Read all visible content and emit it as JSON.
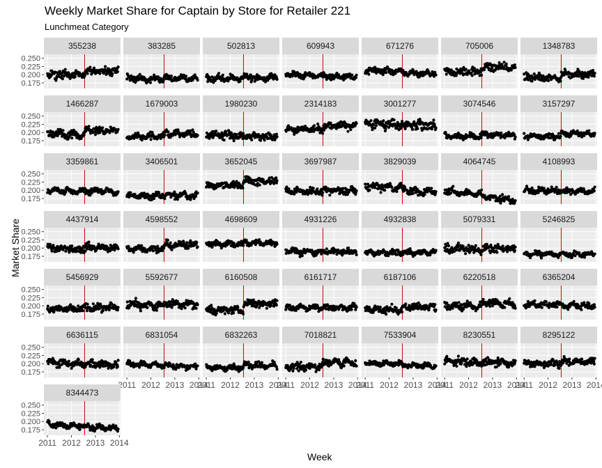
{
  "chart_data": {
    "type": "scatter",
    "title": "Weekly Market Share for Captain by Store for Retailer 221",
    "subtitle": "Lunchmeat Category",
    "xlabel": "Week",
    "ylabel": "Market Share",
    "x_ticks": [
      "2011",
      "2012",
      "2013",
      "2014"
    ],
    "y_ticks": [
      "0.175",
      "0.200",
      "0.225",
      "0.250"
    ],
    "xlim": [
      2010.85,
      2014.05
    ],
    "ylim": [
      0.158,
      0.262
    ],
    "grid": true,
    "facet_columns": 7,
    "reference_line": {
      "x": 2012.55,
      "color": "#cc0000"
    },
    "point_color": "#000000",
    "panel_background": "#ebebeb",
    "strip_background": "#d9d9d9",
    "points_per_panel": 160,
    "panels": [
      {
        "store": "355238",
        "before": 0.2,
        "after": 0.21,
        "trend": 0.0,
        "noise": 0.008
      },
      {
        "store": "383285",
        "before": 0.188,
        "after": 0.192,
        "trend": -0.004,
        "noise": 0.006
      },
      {
        "store": "502813",
        "before": 0.19,
        "after": 0.196,
        "trend": -0.006,
        "noise": 0.007
      },
      {
        "store": "609943",
        "before": 0.2,
        "after": 0.198,
        "trend": -0.005,
        "noise": 0.006
      },
      {
        "store": "671276",
        "before": 0.214,
        "after": 0.21,
        "trend": -0.008,
        "noise": 0.006
      },
      {
        "store": "705006",
        "before": 0.208,
        "after": 0.222,
        "trend": 0.0,
        "noise": 0.009
      },
      {
        "store": "1348783",
        "before": 0.192,
        "after": 0.205,
        "trend": -0.004,
        "noise": 0.008
      },
      {
        "store": "1466287",
        "before": 0.195,
        "after": 0.208,
        "trend": -0.004,
        "noise": 0.008
      },
      {
        "store": "1679003",
        "before": 0.188,
        "after": 0.2,
        "trend": -0.004,
        "noise": 0.007
      },
      {
        "store": "1980230",
        "before": 0.193,
        "after": 0.192,
        "trend": -0.006,
        "noise": 0.008
      },
      {
        "store": "2314183",
        "before": 0.208,
        "after": 0.218,
        "trend": 0.004,
        "noise": 0.008
      },
      {
        "store": "3001277",
        "before": 0.228,
        "after": 0.228,
        "trend": -0.008,
        "noise": 0.01
      },
      {
        "store": "3074546",
        "before": 0.19,
        "after": 0.195,
        "trend": -0.004,
        "noise": 0.006
      },
      {
        "store": "3157297",
        "before": 0.19,
        "after": 0.198,
        "trend": -0.004,
        "noise": 0.006
      },
      {
        "store": "3359861",
        "before": 0.198,
        "after": 0.2,
        "trend": -0.004,
        "noise": 0.006
      },
      {
        "store": "3406501",
        "before": 0.185,
        "after": 0.188,
        "trend": -0.004,
        "noise": 0.007
      },
      {
        "store": "3652045",
        "before": 0.215,
        "after": 0.228,
        "trend": -0.002,
        "noise": 0.008
      },
      {
        "store": "3697987",
        "before": 0.198,
        "after": 0.202,
        "trend": -0.004,
        "noise": 0.007
      },
      {
        "store": "3829039",
        "before": 0.212,
        "after": 0.205,
        "trend": -0.01,
        "noise": 0.008
      },
      {
        "store": "4064745",
        "before": 0.198,
        "after": 0.19,
        "trend": -0.02,
        "noise": 0.007
      },
      {
        "store": "4108993",
        "before": 0.2,
        "after": 0.2,
        "trend": -0.004,
        "noise": 0.006
      },
      {
        "store": "4437914",
        "before": 0.2,
        "after": 0.208,
        "trend": -0.008,
        "noise": 0.008
      },
      {
        "store": "4598552",
        "before": 0.198,
        "after": 0.21,
        "trend": 0.0,
        "noise": 0.007
      },
      {
        "store": "4698609",
        "before": 0.214,
        "after": 0.218,
        "trend": -0.004,
        "noise": 0.006
      },
      {
        "store": "4931226",
        "before": 0.19,
        "after": 0.192,
        "trend": -0.004,
        "noise": 0.006
      },
      {
        "store": "4932838",
        "before": 0.186,
        "after": 0.188,
        "trend": -0.002,
        "noise": 0.006
      },
      {
        "store": "5079331",
        "before": 0.198,
        "after": 0.2,
        "trend": -0.004,
        "noise": 0.009
      },
      {
        "store": "5246825",
        "before": 0.182,
        "after": 0.182,
        "trend": -0.002,
        "noise": 0.005
      },
      {
        "store": "5456929",
        "before": 0.19,
        "after": 0.195,
        "trend": 0.0,
        "noise": 0.008
      },
      {
        "store": "5592677",
        "before": 0.205,
        "after": 0.212,
        "trend": -0.008,
        "noise": 0.008
      },
      {
        "store": "6160508",
        "before": 0.188,
        "after": 0.208,
        "trend": -0.002,
        "noise": 0.008
      },
      {
        "store": "6161717",
        "before": 0.195,
        "after": 0.196,
        "trend": -0.002,
        "noise": 0.006
      },
      {
        "store": "6187106",
        "before": 0.188,
        "after": 0.198,
        "trend": -0.002,
        "noise": 0.007
      },
      {
        "store": "6220518",
        "before": 0.2,
        "after": 0.212,
        "trend": -0.006,
        "noise": 0.008
      },
      {
        "store": "6365204",
        "before": 0.205,
        "after": 0.205,
        "trend": -0.006,
        "noise": 0.006
      },
      {
        "store": "6636115",
        "before": 0.205,
        "after": 0.205,
        "trend": -0.01,
        "noise": 0.008
      },
      {
        "store": "6831054",
        "before": 0.198,
        "after": 0.196,
        "trend": -0.006,
        "noise": 0.005
      },
      {
        "store": "6832263",
        "before": 0.19,
        "after": 0.198,
        "trend": -0.004,
        "noise": 0.006
      },
      {
        "store": "7018821",
        "before": 0.192,
        "after": 0.205,
        "trend": -0.002,
        "noise": 0.008
      },
      {
        "store": "7533904",
        "before": 0.203,
        "after": 0.2,
        "trend": -0.008,
        "noise": 0.005
      },
      {
        "store": "8230551",
        "before": 0.208,
        "after": 0.21,
        "trend": -0.008,
        "noise": 0.009
      },
      {
        "store": "8295122",
        "before": 0.202,
        "after": 0.21,
        "trend": -0.004,
        "noise": 0.007
      },
      {
        "store": "8344473",
        "before": 0.192,
        "after": 0.192,
        "trend": -0.014,
        "noise": 0.006
      }
    ]
  }
}
